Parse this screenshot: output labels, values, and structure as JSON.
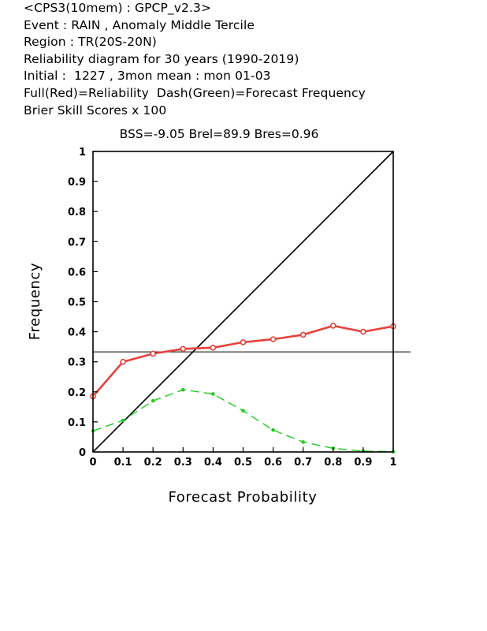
{
  "header": {
    "lines": [
      "<CPS3(10mem) : GPCP_v2.3>",
      "Event : RAIN , Anomaly Middle Tercile",
      "Region : TR(20S-20N)",
      "Reliability diagram for 30 years (1990-2019)",
      "Initial :  1227 , 3mon mean : mon 01-03",
      "Full(Red)=Reliability  Dash(Green)=Forecast Frequency",
      "Brier Skill Scores x 100"
    ]
  },
  "chart_data": {
    "type": "line",
    "scores_label": "BSS=-9.05   Brel=89.9   Bres=0.96",
    "xlabel": "Forecast Probability",
    "ylabel": "Frequency",
    "xlim": [
      0,
      1
    ],
    "ylim": [
      0,
      1
    ],
    "x_ticks": [
      "0",
      "0.1",
      "0.2",
      "0.3",
      "0.4",
      "0.5",
      "0.6",
      "0.7",
      "0.8",
      "0.9",
      "1"
    ],
    "y_ticks": [
      "0",
      "0.1",
      "0.2",
      "0.3",
      "0.4",
      "0.5",
      "0.6",
      "0.7",
      "0.8",
      "0.9",
      "1"
    ],
    "x": [
      0,
      0.1,
      0.2,
      0.3,
      0.4,
      0.5,
      0.6,
      0.7,
      0.8,
      0.9,
      1.0
    ],
    "series": [
      {
        "values": [
          0.185,
          0.3,
          0.327,
          0.343,
          0.347,
          0.365,
          0.375,
          0.39,
          0.42,
          0.4,
          0.418
        ],
        "color": "#e8413a",
        "style": "solid",
        "marker": "circle"
      },
      {
        "values": [
          0.07,
          0.105,
          0.17,
          0.207,
          0.193,
          0.137,
          0.073,
          0.033,
          0.012,
          0.003,
          0.001
        ],
        "color": "#22cc22",
        "style": "dashed",
        "marker": "dot"
      }
    ],
    "reference_lines": [
      {
        "kind": "diagonal",
        "color": "#000000"
      },
      {
        "kind": "horizontal",
        "value": 0.333,
        "color": "#000000"
      }
    ],
    "grid": false
  }
}
